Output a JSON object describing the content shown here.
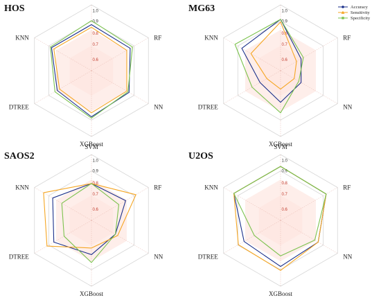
{
  "chart_data": [
    {
      "type": "radar",
      "title": "HOS",
      "axes": [
        "SVM",
        "RF",
        "NN",
        "XGBoost",
        "DTREE",
        "KNN"
      ],
      "rlim": [
        0.5,
        1.0
      ],
      "ticks": [
        "0.6",
        "0.7",
        "0.8",
        "0.9",
        "1.0"
      ],
      "series": [
        {
          "name": "Accuracy",
          "values": [
            0.85,
            0.84,
            0.83,
            0.85,
            0.8,
            0.85
          ]
        },
        {
          "name": "Sensitivity",
          "values": [
            0.83,
            0.81,
            0.81,
            0.82,
            0.78,
            0.83
          ]
        },
        {
          "name": "Specificity",
          "values": [
            0.88,
            0.86,
            0.82,
            0.86,
            0.82,
            0.86
          ]
        }
      ]
    },
    {
      "type": "radar",
      "title": "MG63",
      "axes": [
        "SVM",
        "RF",
        "NN",
        "XGBoost",
        "DTREE",
        "KNN"
      ],
      "rlim": [
        0.5,
        1.0
      ],
      "ticks": [
        "0.6",
        "0.7",
        "0.8",
        "0.9",
        "1.0"
      ],
      "series": [
        {
          "name": "Accuracy",
          "values": [
            0.89,
            0.68,
            0.68,
            0.74,
            0.68,
            0.84
          ]
        },
        {
          "name": "Sensitivity",
          "values": [
            0.87,
            0.64,
            0.62,
            0.64,
            0.62,
            0.76
          ]
        },
        {
          "name": "Specificity",
          "values": [
            0.89,
            0.7,
            0.66,
            0.82,
            0.75,
            0.9
          ]
        }
      ]
    },
    {
      "type": "radar",
      "title": "SAOS2",
      "axes": [
        "SVM",
        "RF",
        "NN",
        "XGBoost",
        "DTREE",
        "KNN"
      ],
      "rlim": [
        0.5,
        1.0
      ],
      "ticks": [
        "0.6",
        "0.7",
        "0.8",
        "0.9",
        "1.0"
      ],
      "series": [
        {
          "name": "Accuracy",
          "values": [
            0.78,
            0.8,
            0.71,
            0.76,
            0.83,
            0.84
          ]
        },
        {
          "name": "Sensitivity",
          "values": [
            0.78,
            0.89,
            0.73,
            0.71,
            0.89,
            0.92
          ]
        },
        {
          "name": "Specificity",
          "values": [
            0.78,
            0.74,
            0.71,
            0.82,
            0.74,
            0.76
          ]
        }
      ]
    },
    {
      "type": "radar",
      "title": "U2OS",
      "axes": [
        "SVM",
        "RF",
        "NN",
        "XGBoost",
        "DTREE",
        "KNN"
      ],
      "rlim": [
        0.5,
        1.0
      ],
      "ticks": [
        "0.6",
        "0.7",
        "0.8",
        "0.9",
        "1.0"
      ],
      "series": [
        {
          "name": "Accuracy",
          "values": [
            0.91,
            0.9,
            0.83,
            0.85,
            0.82,
            0.91
          ]
        },
        {
          "name": "Sensitivity",
          "values": [
            0.91,
            0.9,
            0.83,
            0.88,
            0.87,
            0.91
          ]
        },
        {
          "name": "Specificity",
          "values": [
            0.91,
            0.9,
            0.8,
            0.77,
            0.73,
            0.91
          ]
        }
      ]
    }
  ],
  "legend": {
    "placement": "top-right",
    "items": [
      "Accuracy",
      "Sensitivity",
      "Specificity"
    ]
  },
  "colors": {
    "Accuracy": "#1a2f8a",
    "Sensitivity": "#f5a623",
    "Specificity": "#7cc24e",
    "background_fill": "#fde3dc",
    "grid": "#d6d6d6",
    "tick_red": "#c0392b",
    "tick_dark": "#333333"
  },
  "markers": {
    "Accuracy": "circle",
    "Sensitivity": "triangle",
    "Specificity": "square"
  }
}
